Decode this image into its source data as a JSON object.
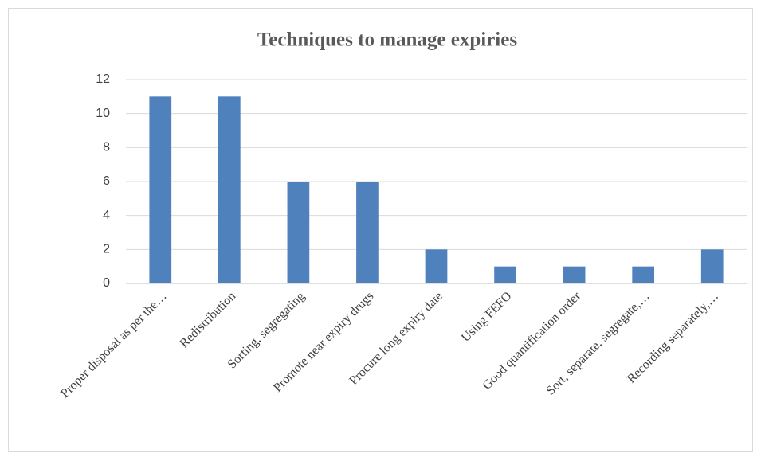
{
  "chart_data": {
    "type": "bar",
    "title": "Techniques to manage expiries",
    "categories": [
      "Proper disposal as per the…",
      "Redistribution",
      "Sorting, segregating",
      "Promote near expiry drugs",
      "Procure long expiry date",
      "Using FEFO",
      "Good quantification order",
      "Sort, separate, segregate,…",
      "Recording separately,…"
    ],
    "values": [
      11,
      11,
      6,
      6,
      2,
      1,
      1,
      1,
      2
    ],
    "color": "#4f81bd",
    "ylim": [
      0,
      12
    ],
    "yticks": [
      0,
      2,
      4,
      6,
      8,
      10,
      12
    ],
    "grid": true
  }
}
